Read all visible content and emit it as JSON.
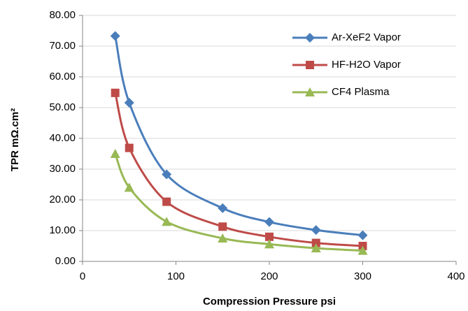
{
  "chart_data": {
    "type": "line",
    "x_label": "Compression Pressure   psi",
    "y_label": "TPR  mΩ.cm²",
    "x": [
      35,
      50,
      90,
      150,
      200,
      250,
      300
    ],
    "series": [
      {
        "name": "Ar-XeF2 Vapor",
        "color": "#4a7ebb",
        "marker": "diamond",
        "values": [
          73.3,
          51.6,
          28.3,
          17.3,
          12.8,
          10.2,
          8.5
        ]
      },
      {
        "name": "HF-H2O Vapor",
        "color": "#be4b48",
        "marker": "square",
        "values": [
          54.8,
          36.9,
          19.4,
          11.3,
          8.0,
          6.0,
          5.0
        ]
      },
      {
        "name": "CF4 Plasma",
        "color": "#98b954",
        "marker": "triangle",
        "values": [
          35.0,
          24.0,
          12.9,
          7.5,
          5.6,
          4.3,
          3.5
        ]
      }
    ],
    "xlim": [
      0,
      400
    ],
    "xticks": [
      0,
      100,
      200,
      300,
      400
    ],
    "ylim": [
      0,
      80
    ],
    "yticks": [
      {
        "value": 0,
        "label": "0.00"
      },
      {
        "value": 10,
        "label": "10.00"
      },
      {
        "value": 20,
        "label": "20.00"
      },
      {
        "value": 30,
        "label": "30.00"
      },
      {
        "value": 40,
        "label": "40.00"
      },
      {
        "value": 50,
        "label": "50.00"
      },
      {
        "value": 60,
        "label": "60.00"
      },
      {
        "value": 70,
        "label": "70.00"
      },
      {
        "value": 80,
        "label": "80.00"
      }
    ],
    "grid": true,
    "legend": "top-right"
  }
}
